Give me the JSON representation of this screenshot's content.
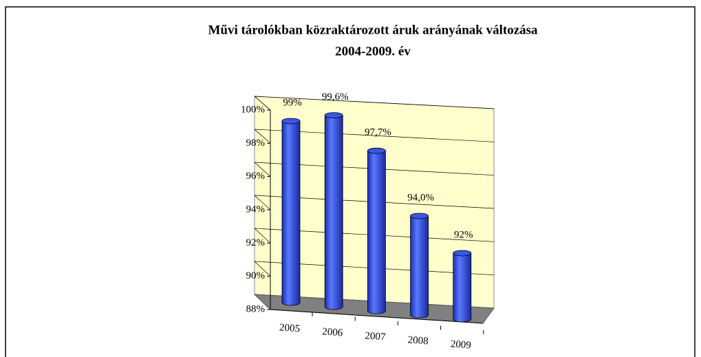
{
  "chart_data": {
    "type": "bar",
    "title": "Művi tárolókban közraktározott áruk arányának változása",
    "subtitle": "2004-2009. év",
    "categories": [
      "2005",
      "2006",
      "2007",
      "2008",
      "2009"
    ],
    "values": [
      99,
      99.6,
      97.7,
      94.0,
      92
    ],
    "value_labels": [
      "99%",
      "99,6%",
      "97,7%",
      "94,0%",
      "92%"
    ],
    "color": "#3a55e8",
    "ylim": [
      88,
      100
    ],
    "yticks": [
      {
        "value": 88,
        "label": "88%"
      },
      {
        "value": 90,
        "label": "90%"
      },
      {
        "value": 92,
        "label": "92%"
      },
      {
        "value": 94,
        "label": "94%"
      },
      {
        "value": 96,
        "label": "96%"
      },
      {
        "value": 98,
        "label": "98%"
      },
      {
        "value": 100,
        "label": "100%"
      }
    ],
    "grid": true
  }
}
